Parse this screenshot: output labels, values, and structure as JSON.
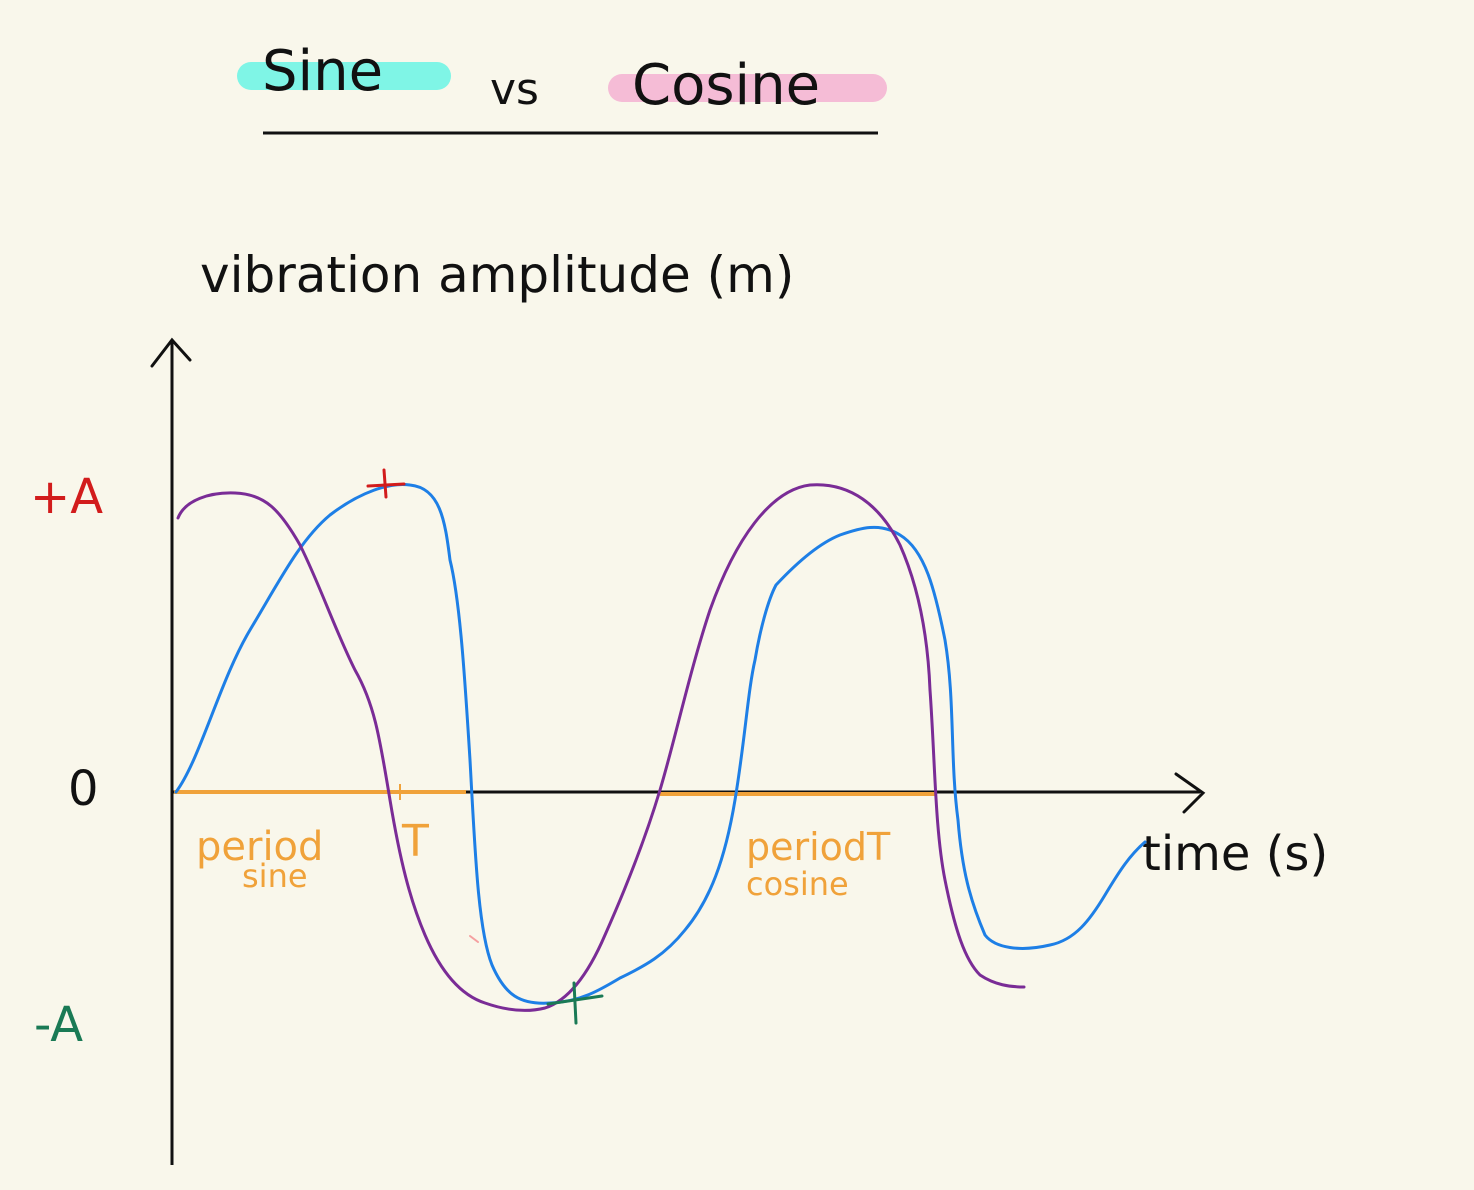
{
  "title": {
    "sine_word": "Sine",
    "vs_word": "vs",
    "cosine_word": "Cosine",
    "sine_highlight": "#7ff5e6",
    "cosine_highlight": "#f5bcd6"
  },
  "axes": {
    "y_label": "vibration amplitude (m)",
    "x_label": "time (s)",
    "ticks": {
      "plus_a": "+A",
      "zero": "0",
      "minus_a": "-A"
    }
  },
  "annotations": {
    "period_sine_line1": "period",
    "period_sine_line2": "sine",
    "period_sine_T": "T",
    "period_cosine_line1": "periodT",
    "period_cosine_line2": "cosine"
  },
  "colors": {
    "axis": "#111111",
    "sine_curve": "#1e7fe6",
    "cosine_curve": "#7a2c96",
    "period": "#f0a23a",
    "plus_a": "#d21c1c",
    "minus_a": "#1a7a55"
  },
  "chart_data": {
    "type": "line",
    "title": "Sine vs Cosine",
    "xlabel": "time (s)",
    "ylabel": "vibration amplitude (m)",
    "y_ticks": [
      "+A",
      "0",
      "-A"
    ],
    "series": [
      {
        "name": "Sine",
        "color": "#1e7fe6"
      },
      {
        "name": "Cosine",
        "color": "#7a2c96"
      }
    ],
    "grid": false
  }
}
